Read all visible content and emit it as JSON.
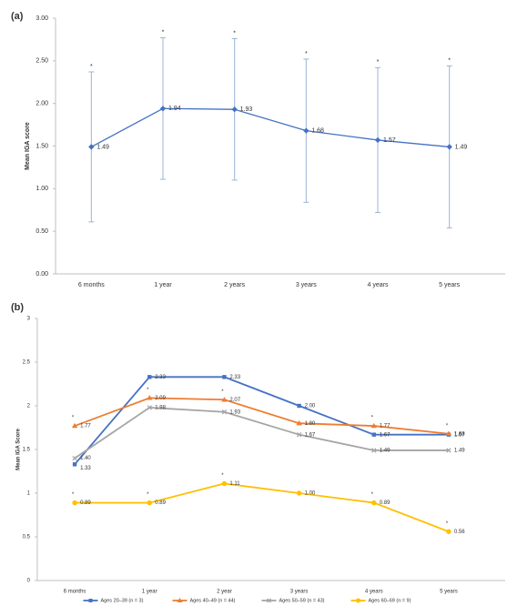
{
  "chart_data": [
    {
      "type": "line",
      "panel_label": "(a)",
      "y_label": "Mean IGA score",
      "categories": [
        "6 months",
        "1 year",
        "2 years",
        "3 years",
        "4 years",
        "5 years"
      ],
      "ylim": [
        0,
        3
      ],
      "yticks": [
        {
          "value": 0,
          "label": "0.00"
        },
        {
          "value": 0.5,
          "label": "0.50"
        },
        {
          "value": 1,
          "label": "1.00"
        },
        {
          "value": 1.5,
          "label": "1.50"
        },
        {
          "value": 2,
          "label": "2.00"
        },
        {
          "value": 2.5,
          "label": "2.50"
        },
        {
          "value": 3,
          "label": "3.00"
        }
      ],
      "series": [
        {
          "color": "#4472c4",
          "marker": "diamond",
          "error_color": "#9db3d3",
          "values": [
            1.49,
            1.94,
            1.93,
            1.68,
            1.57,
            1.49
          ],
          "errors": [
            0.88,
            0.83,
            0.83,
            0.84,
            0.85,
            0.95
          ],
          "significance": [
            "*",
            "*",
            "*",
            "*",
            "*",
            "*"
          ]
        }
      ]
    },
    {
      "type": "line",
      "panel_label": "(b)",
      "y_label": "Mean IGA Score",
      "categories": [
        "6 months",
        "1 year",
        "2 year",
        "3 years",
        "4 years",
        "5 years"
      ],
      "ylim": [
        0,
        3
      ],
      "yticks": [
        0,
        0.5,
        1,
        1.5,
        2,
        2.5,
        3
      ],
      "series": [
        {
          "name": "Ages 20–39 (n = 3)",
          "color": "#4472c4",
          "marker": "square",
          "values": [
            1.33,
            2.33,
            2.33,
            2.0,
            1.67,
            1.67
          ],
          "value_labels": [
            "1.33",
            "2.33",
            "2.33",
            "2.00",
            "1.67",
            "1.67"
          ],
          "significance": [
            null,
            null,
            null,
            null,
            null,
            null
          ]
        },
        {
          "name": "Ages 40–49 (n = 44)",
          "color": "#ed7d31",
          "marker": "triangle",
          "values": [
            1.77,
            2.09,
            2.07,
            1.8,
            1.77,
            1.68
          ],
          "value_labels": [
            "1.77",
            "2.09",
            "2.07",
            "1.80",
            "1.77",
            "1.68"
          ],
          "significance": [
            "*",
            "*",
            "*",
            null,
            "*",
            "*"
          ]
        },
        {
          "name": "Ages 50–59 (n = 43)",
          "color": "#a5a5a5",
          "marker": "cross",
          "values": [
            1.4,
            1.98,
            1.93,
            1.67,
            1.49,
            1.49
          ],
          "value_labels": [
            "1.40",
            "1.98",
            "1.93",
            "1.67",
            "1.49",
            "1.49"
          ],
          "significance": [
            null,
            null,
            null,
            null,
            null,
            null
          ]
        },
        {
          "name": "Ages 60–69 (n = 9)",
          "color": "#ffc000",
          "marker": "circle",
          "values": [
            0.89,
            0.89,
            1.11,
            1.0,
            0.89,
            0.56
          ],
          "value_labels": [
            "0.89",
            "0.89",
            "1.11",
            "1.00",
            "0.89",
            "0.56"
          ],
          "significance": [
            "*",
            "*",
            "*",
            null,
            "*",
            "*"
          ]
        }
      ]
    }
  ]
}
